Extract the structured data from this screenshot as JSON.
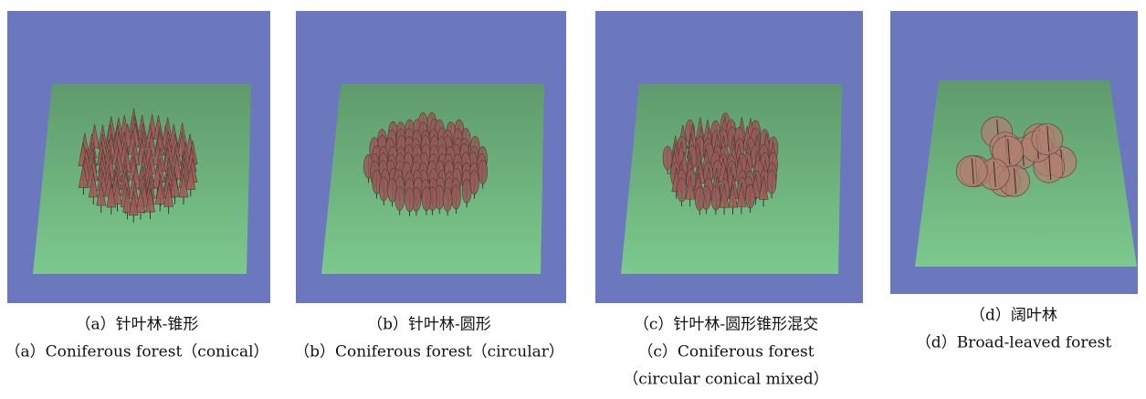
{
  "figure": {
    "panels": [
      {
        "caption_zh": "（a）针叶林-锥形",
        "caption_en": [
          "（a）Coniferous forest（conical）"
        ]
      },
      {
        "caption_zh": "（b）针叶林-圆形",
        "caption_en": [
          "（b）Coniferous forest（circular）"
        ]
      },
      {
        "caption_zh": "（c）针叶林-圆形锥形混交",
        "caption_en": [
          "（c）Coniferous forest",
          "（circular conical mixed）"
        ]
      },
      {
        "caption_zh": "（d）阔叶林",
        "caption_en": [
          "（d）Broad-leaved forest"
        ]
      }
    ]
  }
}
